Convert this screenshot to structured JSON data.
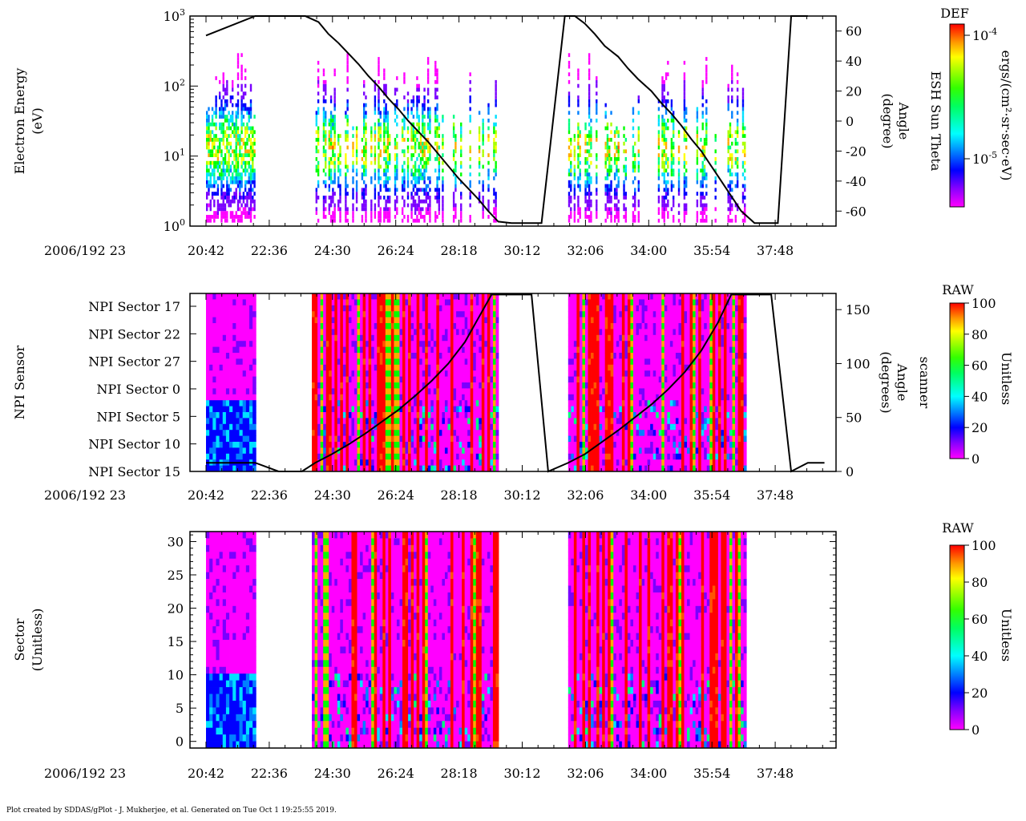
{
  "footer": "Plot created by SDDAS/gPlot - J. Mukherjee, et al.  Generated on Tue Oct 1 19:25:55 2019.",
  "colors": {
    "palette": [
      "#ff00ff",
      "#7a00ff",
      "#0000ff",
      "#0080ff",
      "#00e0ff",
      "#00ff80",
      "#00ff00",
      "#aaff00",
      "#ffff00",
      "#ffaa00",
      "#ff5500",
      "#ff0000"
    ]
  },
  "chart_data": [
    {
      "type": "heatmap",
      "panel": "electron-energy",
      "date_label": "2006/192 23",
      "x_ticks": [
        "20:42",
        "22:36",
        "24:30",
        "26:24",
        "28:18",
        "30:12",
        "32:06",
        "34:00",
        "35:54",
        "37:48"
      ],
      "ylabel": [
        "Electron Energy",
        "(eV)"
      ],
      "y_ticks": [
        {
          "value": 1,
          "base": "10",
          "exp": "0"
        },
        {
          "value": 10,
          "base": "10",
          "exp": "1"
        },
        {
          "value": 100,
          "base": "10",
          "exp": "2"
        },
        {
          "value": 1000,
          "base": "10",
          "exp": "3"
        }
      ],
      "ylim": [
        1,
        1000
      ],
      "yscale": "log",
      "right_axis": {
        "label": [
          "ESH Sun Theta",
          "Angle",
          "(degree)"
        ],
        "ticks": [
          60,
          40,
          20,
          0,
          -20,
          -40,
          -60
        ],
        "ylim": [
          -70,
          70
        ]
      },
      "overlay_line": [
        [
          20.42,
          57
        ],
        [
          21.9,
          70
        ],
        [
          22.6,
          70
        ],
        [
          23.1,
          70
        ],
        [
          23.4,
          70
        ],
        [
          23.8,
          66
        ],
        [
          24.1,
          58
        ],
        [
          24.4,
          52
        ],
        [
          24.7,
          45
        ],
        [
          25.0,
          38
        ],
        [
          25.3,
          30
        ],
        [
          25.6,
          23
        ],
        [
          25.9,
          15
        ],
        [
          26.2,
          8
        ],
        [
          26.5,
          0
        ],
        [
          26.8,
          -7
        ],
        [
          27.1,
          -14
        ],
        [
          27.4,
          -22
        ],
        [
          27.7,
          -30
        ],
        [
          28.0,
          -38
        ],
        [
          28.3,
          -45
        ],
        [
          28.6,
          -52
        ],
        [
          28.9,
          -60
        ],
        [
          29.2,
          -67
        ],
        [
          29.6,
          -68
        ],
        [
          30.0,
          -68
        ],
        [
          30.5,
          -68
        ],
        [
          31.2,
          70
        ],
        [
          31.5,
          70
        ],
        [
          31.8,
          65
        ],
        [
          32.1,
          58
        ],
        [
          32.4,
          50
        ],
        [
          32.8,
          43
        ],
        [
          33.1,
          35
        ],
        [
          33.4,
          28
        ],
        [
          33.8,
          20
        ],
        [
          34.1,
          12
        ],
        [
          34.4,
          5
        ],
        [
          34.7,
          -3
        ],
        [
          35.0,
          -12
        ],
        [
          35.3,
          -20
        ],
        [
          35.6,
          -30
        ],
        [
          35.9,
          -40
        ],
        [
          36.2,
          -50
        ],
        [
          36.5,
          -60
        ],
        [
          36.9,
          -68
        ],
        [
          37.6,
          -68
        ],
        [
          38.0,
          70
        ],
        [
          38.5,
          70
        ]
      ],
      "colorbar": {
        "title": "DEF",
        "label": "ergs/(cm²·sr·sec·eV)",
        "tick_high": {
          "base": "10",
          "exp": "-4"
        },
        "tick_low": {
          "base": "10",
          "exp": "-5"
        }
      }
    },
    {
      "type": "heatmap",
      "panel": "npi-sensor",
      "date_label": "2006/192 23",
      "x_ticks": [
        "20:42",
        "22:36",
        "24:30",
        "26:24",
        "28:18",
        "30:12",
        "32:06",
        "34:00",
        "35:54",
        "37:48"
      ],
      "ylabel": [
        "NPI Sensor"
      ],
      "y_categories": [
        "NPI Sector 17",
        "NPI Sector 22",
        "NPI Sector 27",
        "NPI Sector 0",
        "NPI Sector 5",
        "NPI Sector 10",
        "NPI Sector 15"
      ],
      "right_axis": {
        "label": [
          "scanner",
          "Angle",
          "(degrees)"
        ],
        "ticks": [
          150,
          100,
          50,
          0
        ],
        "ylim": [
          0,
          165
        ]
      },
      "overlay_line": [
        [
          20.42,
          8
        ],
        [
          21.9,
          8
        ],
        [
          22.6,
          0
        ],
        [
          23.3,
          0
        ],
        [
          23.7,
          8
        ],
        [
          24.2,
          16
        ],
        [
          24.7,
          25
        ],
        [
          25.2,
          35
        ],
        [
          25.7,
          46
        ],
        [
          26.2,
          57
        ],
        [
          26.7,
          70
        ],
        [
          27.2,
          84
        ],
        [
          27.7,
          100
        ],
        [
          28.2,
          120
        ],
        [
          28.6,
          142
        ],
        [
          29.0,
          164
        ],
        [
          30.2,
          164
        ],
        [
          30.7,
          0
        ],
        [
          31.3,
          8
        ],
        [
          31.8,
          16
        ],
        [
          32.3,
          27
        ],
        [
          32.8,
          38
        ],
        [
          33.3,
          50
        ],
        [
          33.8,
          62
        ],
        [
          34.3,
          76
        ],
        [
          34.8,
          92
        ],
        [
          35.3,
          112
        ],
        [
          35.8,
          138
        ],
        [
          36.2,
          164
        ],
        [
          37.4,
          164
        ],
        [
          38.0,
          0
        ],
        [
          38.5,
          8
        ],
        [
          39.0,
          8
        ]
      ],
      "colorbar": {
        "title": "RAW",
        "label": "Unitless",
        "ticks": [
          100,
          80,
          60,
          40,
          20,
          0
        ],
        "range": [
          0,
          100
        ]
      }
    },
    {
      "type": "heatmap",
      "panel": "sector",
      "date_label": "2006/192 23",
      "x_ticks": [
        "20:42",
        "22:36",
        "24:30",
        "26:24",
        "28:18",
        "30:12",
        "32:06",
        "34:00",
        "35:54",
        "37:48"
      ],
      "ylabel": [
        "Sector",
        "(Unitless)"
      ],
      "y_ticks": [
        30,
        25,
        20,
        15,
        10,
        5,
        0
      ],
      "ylim": [
        -1,
        31.5
      ],
      "colorbar": {
        "title": "RAW",
        "label": "Unitless",
        "ticks": [
          100,
          80,
          60,
          40,
          20,
          0
        ],
        "range": [
          0,
          100
        ]
      }
    }
  ]
}
